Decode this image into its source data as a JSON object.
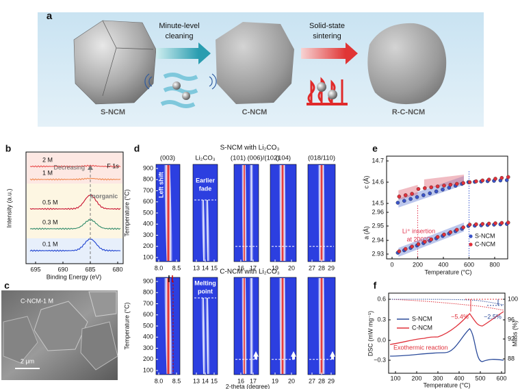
{
  "a": {
    "label": "a",
    "step1": [
      "Minute-level",
      "cleaning"
    ],
    "step2": [
      "Solid-state",
      "sintering"
    ],
    "samples": [
      "S-NCM",
      "C-NCM",
      "R-C-NCM"
    ]
  },
  "b": {
    "label": "b",
    "ylabel": "Intensity (a.u.)",
    "xlabel": "Binding Energy (eV)",
    "xticks": [
      "695",
      "690",
      "685",
      "680"
    ],
    "curves": [
      "2 M",
      "1 M",
      "0.5 M",
      "0.3 M",
      "0.1 M"
    ],
    "trend": "Decreasing",
    "peak": "F 1s",
    "region": "Inorganic"
  },
  "c": {
    "label": "c",
    "sample": "C-NCM-1 M",
    "scale": "2 μm"
  },
  "d": {
    "label": "d",
    "top_title": "S-NCM with Li₂CO₃",
    "bottom_title": "C-NCM with Li₂CO₃",
    "peaks": [
      "(003)",
      "Li₂CO₃",
      "(101)",
      "(006)/(102)",
      "(104)",
      "(018/110)"
    ],
    "ylabel": "Temperature (°C)",
    "yticks": [
      "900",
      "800",
      "700",
      "600",
      "500",
      "400",
      "300",
      "200",
      "100"
    ],
    "xticks": [
      [
        "8.0",
        "8.5"
      ],
      [
        "13",
        "14",
        "15"
      ],
      [
        "16",
        "17"
      ],
      [
        "19",
        "20"
      ],
      [
        "27",
        "28",
        "29"
      ]
    ],
    "xlabel": "2-theta (degree)",
    "left_shift": "Left shift",
    "earlier_fade": [
      "Earlier",
      "fade"
    ],
    "melting_point": [
      "Melting",
      "point"
    ]
  },
  "e": {
    "label": "e",
    "ylabel_top": "c (Å)",
    "ylabel_bottom": "a (Å)",
    "yticks_top": [
      "14.7",
      "14.6",
      "14.5"
    ],
    "yticks_bottom": [
      "2.96",
      "2.95",
      "2.94",
      "2.93"
    ],
    "xticks": [
      "0",
      "200",
      "400",
      "600",
      "800"
    ],
    "xlabel": "Temperature (°C)",
    "legend": [
      "S-NCM",
      "C-NCM"
    ],
    "note": [
      "Li⁺ insertion",
      "at 200°C"
    ]
  },
  "f": {
    "label": "f",
    "ylabel": "DSC (mW mg⁻¹)",
    "y2label": "Mass (%)",
    "yticks": [
      "0.6",
      "0.3",
      "0.0",
      "−0.3"
    ],
    "y2ticks": [
      "100",
      "96",
      "92",
      "88"
    ],
    "xticks": [
      "100",
      "200",
      "300",
      "400",
      "500",
      "600"
    ],
    "xlabel": "Temperature (°C)",
    "legend": [
      "S-NCM",
      "C-NCM"
    ],
    "note": "Exothermic reaction",
    "loss": [
      "−5.4%",
      "−2.5%"
    ]
  }
}
